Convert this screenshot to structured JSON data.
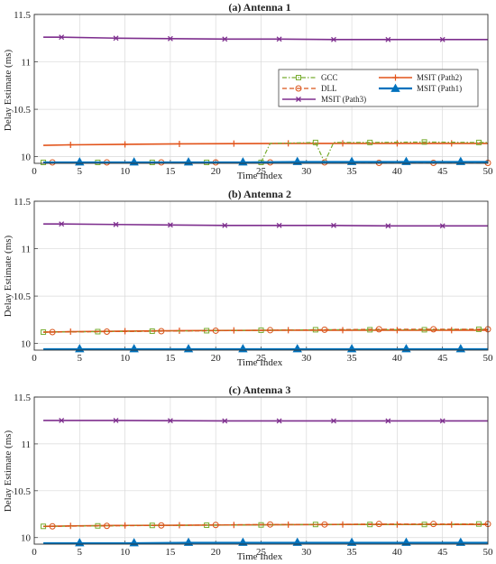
{
  "colors": {
    "gcc": "#77ac30",
    "dll": "#d95319",
    "path2": "#e2531a",
    "path3": "#7e2f8e",
    "path1": "#0072bd",
    "grid": "#d9d9d9",
    "axis": "#333333"
  },
  "legend": {
    "placement": "top-right (in first panel)",
    "entries": [
      {
        "label": "GCC",
        "key": "gcc",
        "marker": "square",
        "dash": "dashdot"
      },
      {
        "label": "MSIT (Path2)",
        "key": "path2",
        "marker": "plus",
        "dash": "solid"
      },
      {
        "label": "DLL",
        "key": "dll",
        "marker": "circle",
        "dash": "dashed"
      },
      {
        "label": "MSIT (Path1)",
        "key": "path1",
        "marker": "triangle",
        "dash": "solid"
      },
      {
        "label": "MSIT (Path3)",
        "key": "path3",
        "marker": "cross",
        "dash": "solid"
      }
    ]
  },
  "chart_data": [
    {
      "type": "line",
      "title": "(a) Antenna 1",
      "xlabel": "Time Index",
      "ylabel": "Delay Estimate (ms)",
      "xlim": [
        0,
        50
      ],
      "ylim": [
        9.93,
        11.5
      ],
      "xticks": [
        "0",
        "5",
        "10",
        "15",
        "20",
        "25",
        "30",
        "35",
        "40",
        "45",
        "50"
      ],
      "yticks": [
        {
          "v": 10,
          "label": "10"
        },
        {
          "v": 10.5,
          "label": "10.5"
        },
        {
          "v": 11,
          "label": "11"
        },
        {
          "v": 11.5,
          "label": "11.5"
        }
      ],
      "grid": true,
      "series": [
        {
          "name": "MSIT (Path3)",
          "key": "path3",
          "marker": "cross",
          "dash": "solid",
          "x": [
            1,
            3,
            9,
            15,
            21,
            27,
            33,
            39,
            45,
            50
          ],
          "y": [
            11.26,
            11.26,
            11.25,
            11.245,
            11.24,
            11.24,
            11.235,
            11.235,
            11.235,
            11.235
          ],
          "markers_x": [
            3,
            9,
            15,
            21,
            27,
            33,
            39,
            45
          ]
        },
        {
          "name": "MSIT (Path2)",
          "key": "path2",
          "marker": "plus",
          "dash": "solid",
          "x": [
            1,
            4,
            10,
            16,
            22,
            28,
            34,
            40,
            46,
            50
          ],
          "y": [
            10.12,
            10.125,
            10.13,
            10.135,
            10.138,
            10.14,
            10.14,
            10.14,
            10.14,
            10.14
          ],
          "markers_x": [
            4,
            10,
            16,
            22,
            28,
            34,
            40,
            46
          ]
        },
        {
          "name": "GCC",
          "key": "gcc",
          "marker": "square",
          "dash": "dashdot",
          "x": [
            1,
            7,
            13,
            19,
            25,
            26,
            31,
            32,
            33,
            37,
            43,
            49,
            50
          ],
          "y": [
            9.94,
            9.94,
            9.94,
            9.94,
            9.94,
            10.14,
            10.15,
            9.94,
            10.15,
            10.15,
            10.155,
            10.15,
            10.15
          ],
          "markers_x": [
            1,
            7,
            13,
            19,
            25,
            31,
            37,
            43,
            49
          ]
        },
        {
          "name": "DLL",
          "key": "dll",
          "marker": "circle",
          "dash": "dashed",
          "x": [
            1,
            2,
            8,
            14,
            20,
            26,
            32,
            38,
            44,
            50
          ],
          "y": [
            9.94,
            9.94,
            9.94,
            9.94,
            9.94,
            9.94,
            9.94,
            9.935,
            9.935,
            9.935
          ],
          "markers_x": [
            2,
            8,
            14,
            20,
            26,
            32,
            38,
            44,
            50
          ]
        },
        {
          "name": "MSIT (Path1)",
          "key": "path1",
          "marker": "triangle",
          "dash": "solid",
          "x": [
            1,
            5,
            11,
            17,
            23,
            29,
            35,
            41,
            47,
            50
          ],
          "y": [
            9.94,
            9.94,
            9.94,
            9.94,
            9.94,
            9.945,
            9.945,
            9.945,
            9.945,
            9.945
          ],
          "markers_x": [
            5,
            11,
            17,
            23,
            29,
            35,
            41,
            47
          ]
        }
      ]
    },
    {
      "type": "line",
      "title": "(b) Antenna 2",
      "xlabel": "Time Index",
      "ylabel": "Delay Estimate (ms)",
      "xlim": [
        0,
        50
      ],
      "ylim": [
        9.93,
        11.5
      ],
      "xticks": [
        "0",
        "5",
        "10",
        "15",
        "20",
        "25",
        "30",
        "35",
        "40",
        "45",
        "50"
      ],
      "yticks": [
        {
          "v": 10,
          "label": "10"
        },
        {
          "v": 10.5,
          "label": "10.5"
        },
        {
          "v": 11,
          "label": "11"
        },
        {
          "v": 11.5,
          "label": "11.5"
        }
      ],
      "grid": true,
      "series": [
        {
          "name": "MSIT (Path3)",
          "key": "path3",
          "marker": "cross",
          "dash": "solid",
          "x": [
            1,
            3,
            9,
            15,
            21,
            27,
            33,
            39,
            45,
            50
          ],
          "y": [
            11.26,
            11.26,
            11.255,
            11.25,
            11.245,
            11.245,
            11.245,
            11.24,
            11.24,
            11.24
          ],
          "markers_x": [
            3,
            9,
            15,
            21,
            27,
            33,
            39,
            45
          ]
        },
        {
          "name": "MSIT (Path2)",
          "key": "path2",
          "marker": "plus",
          "dash": "solid",
          "x": [
            1,
            4,
            10,
            16,
            22,
            28,
            34,
            40,
            46,
            50
          ],
          "y": [
            10.12,
            10.125,
            10.13,
            10.135,
            10.138,
            10.14,
            10.14,
            10.14,
            10.14,
            10.14
          ],
          "markers_x": [
            4,
            10,
            16,
            22,
            28,
            34,
            40,
            46
          ]
        },
        {
          "name": "GCC",
          "key": "gcc",
          "marker": "square",
          "dash": "dashdot",
          "x": [
            1,
            7,
            13,
            19,
            25,
            31,
            37,
            43,
            49,
            50
          ],
          "y": [
            10.12,
            10.125,
            10.13,
            10.135,
            10.14,
            10.145,
            10.145,
            10.145,
            10.15,
            10.15
          ],
          "markers_x": [
            1,
            7,
            13,
            19,
            25,
            31,
            37,
            43,
            49
          ]
        },
        {
          "name": "DLL",
          "key": "dll",
          "marker": "circle",
          "dash": "dashed",
          "x": [
            1,
            2,
            8,
            14,
            20,
            26,
            32,
            38,
            44,
            50
          ],
          "y": [
            10.12,
            10.12,
            10.125,
            10.13,
            10.135,
            10.14,
            10.145,
            10.15,
            10.15,
            10.15
          ],
          "markers_x": [
            2,
            8,
            14,
            20,
            26,
            32,
            38,
            44,
            50
          ]
        },
        {
          "name": "MSIT (Path1)",
          "key": "path1",
          "marker": "triangle",
          "dash": "solid",
          "x": [
            1,
            5,
            11,
            17,
            23,
            29,
            35,
            41,
            47,
            50
          ],
          "y": [
            9.94,
            9.94,
            9.94,
            9.94,
            9.94,
            9.94,
            9.94,
            9.94,
            9.94,
            9.94
          ],
          "markers_x": [
            5,
            11,
            17,
            23,
            29,
            35,
            41,
            47
          ]
        }
      ]
    },
    {
      "type": "line",
      "title": "(c) Antenna 3",
      "xlabel": "Time Index",
      "ylabel": "Delay Estimate (ms)",
      "xlim": [
        0,
        50
      ],
      "ylim": [
        9.93,
        11.5
      ],
      "xticks": [
        "0",
        "5",
        "10",
        "15",
        "20",
        "25",
        "30",
        "35",
        "40",
        "45",
        "50"
      ],
      "yticks": [
        {
          "v": 10,
          "label": "10"
        },
        {
          "v": 10.5,
          "label": "10.5"
        },
        {
          "v": 11,
          "label": "11"
        },
        {
          "v": 11.5,
          "label": "11.5"
        }
      ],
      "grid": true,
      "series": [
        {
          "name": "MSIT (Path3)",
          "key": "path3",
          "marker": "cross",
          "dash": "solid",
          "x": [
            1,
            3,
            9,
            15,
            21,
            27,
            33,
            39,
            45,
            50
          ],
          "y": [
            11.25,
            11.25,
            11.25,
            11.248,
            11.245,
            11.245,
            11.245,
            11.245,
            11.245,
            11.245
          ],
          "markers_x": [
            3,
            9,
            15,
            21,
            27,
            33,
            39,
            45
          ]
        },
        {
          "name": "MSIT (Path2)",
          "key": "path2",
          "marker": "plus",
          "dash": "solid",
          "x": [
            1,
            4,
            10,
            16,
            22,
            28,
            34,
            40,
            46,
            50
          ],
          "y": [
            10.12,
            10.125,
            10.13,
            10.132,
            10.135,
            10.138,
            10.14,
            10.14,
            10.14,
            10.14
          ],
          "markers_x": [
            4,
            10,
            16,
            22,
            28,
            34,
            40,
            46
          ]
        },
        {
          "name": "GCC",
          "key": "gcc",
          "marker": "square",
          "dash": "dashdot",
          "x": [
            1,
            7,
            13,
            19,
            25,
            31,
            37,
            43,
            49,
            50
          ],
          "y": [
            10.12,
            10.125,
            10.13,
            10.132,
            10.135,
            10.14,
            10.14,
            10.14,
            10.145,
            10.145
          ],
          "markers_x": [
            1,
            7,
            13,
            19,
            25,
            31,
            37,
            43,
            49
          ]
        },
        {
          "name": "DLL",
          "key": "dll",
          "marker": "circle",
          "dash": "dashed",
          "x": [
            1,
            2,
            8,
            14,
            20,
            26,
            32,
            38,
            44,
            50
          ],
          "y": [
            10.12,
            10.12,
            10.125,
            10.13,
            10.135,
            10.14,
            10.14,
            10.145,
            10.145,
            10.145
          ],
          "markers_x": [
            2,
            8,
            14,
            20,
            26,
            32,
            38,
            44,
            50
          ]
        },
        {
          "name": "MSIT (Path1)",
          "key": "path1",
          "marker": "triangle",
          "dash": "solid",
          "x": [
            1,
            5,
            11,
            17,
            23,
            29,
            35,
            41,
            47,
            50
          ],
          "y": [
            9.94,
            9.94,
            9.94,
            9.945,
            9.945,
            9.945,
            9.945,
            9.945,
            9.945,
            9.945
          ],
          "markers_x": [
            5,
            11,
            17,
            23,
            29,
            35,
            41,
            47
          ]
        }
      ]
    }
  ]
}
